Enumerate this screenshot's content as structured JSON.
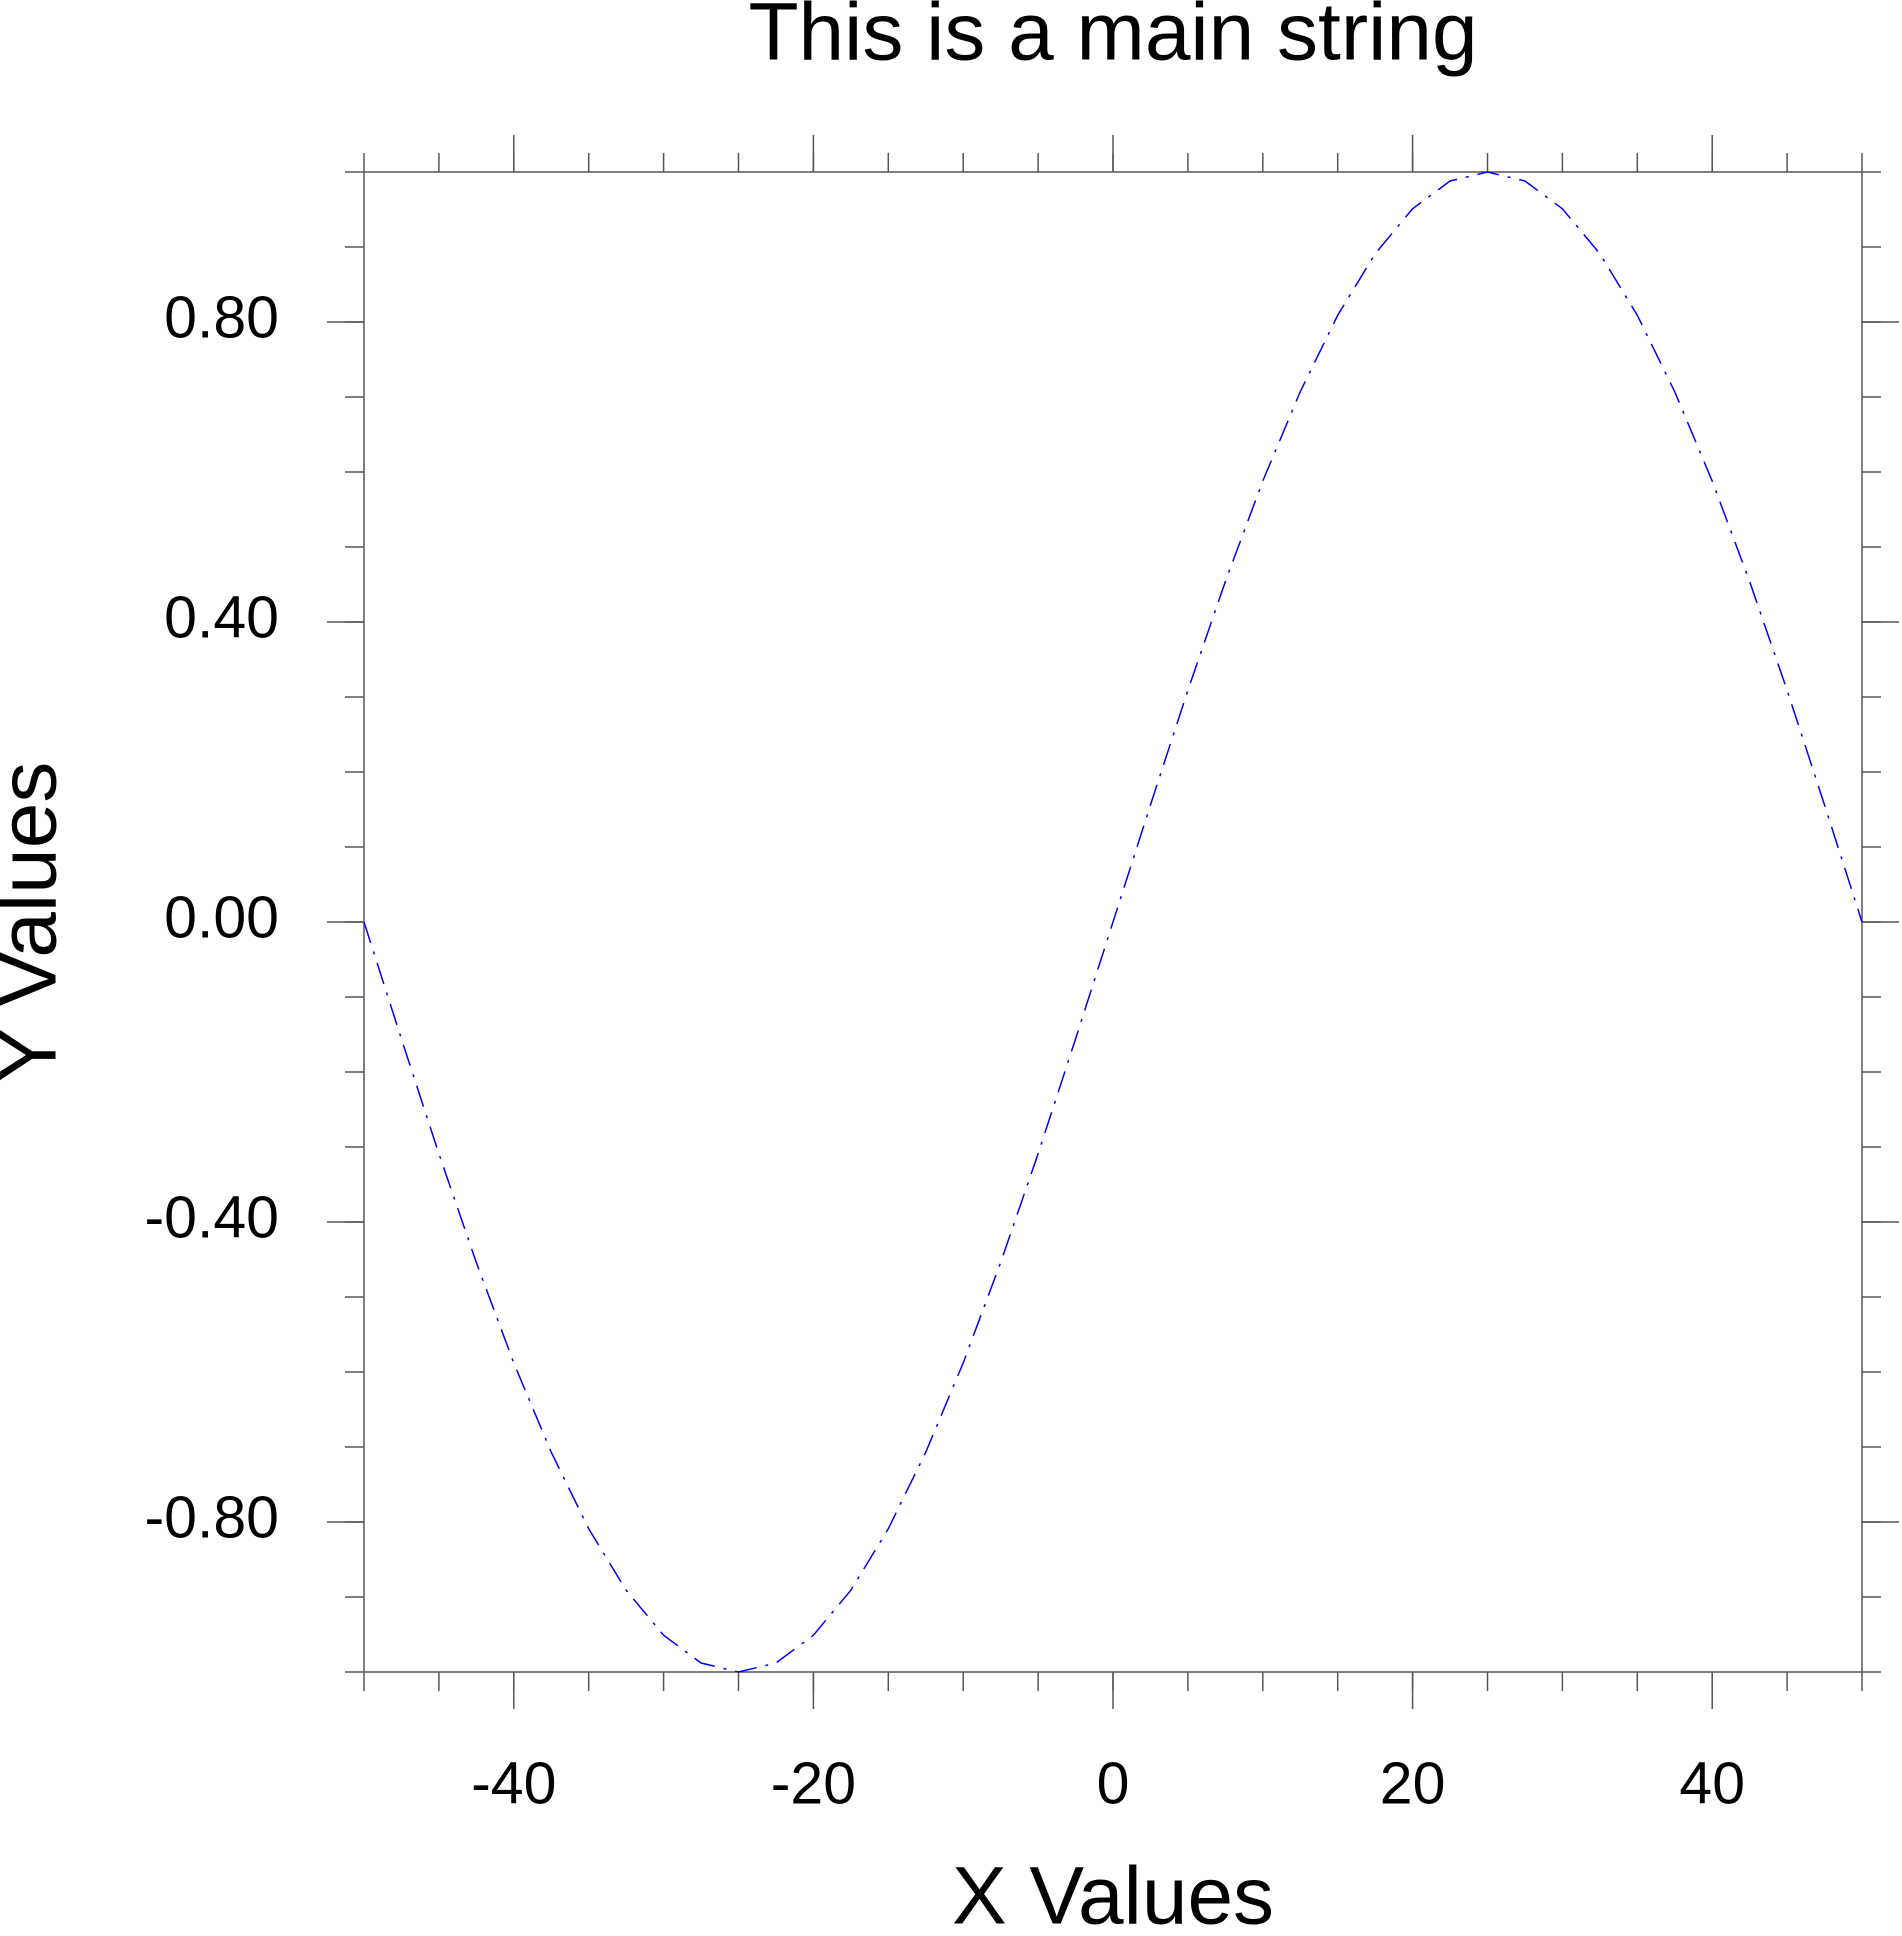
{
  "chart_data": {
    "type": "line",
    "title": "This is a main string",
    "x_label": "X Values",
    "y_label": "Y Values",
    "x": [
      -50,
      -47.5,
      -45,
      -42.5,
      -40,
      -37.5,
      -35,
      -32.5,
      -30,
      -27.5,
      -25,
      -22.5,
      -20,
      -17.5,
      -15,
      -12.5,
      -10,
      -7.5,
      -5,
      -2.5,
      0,
      2.5,
      5,
      7.5,
      10,
      12.5,
      15,
      17.5,
      20,
      22.5,
      25,
      27.5,
      30,
      32.5,
      35,
      37.5,
      40,
      42.5,
      45,
      47.5,
      50
    ],
    "series": [
      {
        "color": "#0000ff",
        "values": [
          0,
          -0.156,
          -0.309,
          -0.454,
          -0.588,
          -0.707,
          -0.809,
          -0.891,
          -0.951,
          -0.988,
          -1,
          -0.988,
          -0.951,
          -0.891,
          -0.809,
          -0.707,
          -0.588,
          -0.454,
          -0.309,
          -0.156,
          0,
          0.156,
          0.309,
          0.454,
          0.588,
          0.707,
          0.809,
          0.891,
          0.951,
          0.988,
          1,
          0.988,
          0.951,
          0.891,
          0.809,
          0.707,
          0.588,
          0.454,
          0.309,
          0.156,
          0
        ]
      }
    ],
    "xlim": [
      -50,
      50
    ],
    "xticks": [
      -40,
      -20,
      0,
      20,
      40
    ],
    "ylim": [
      -1,
      1
    ],
    "yticks": [
      {
        "value": -0.8,
        "label": "-0.80"
      },
      {
        "value": -0.4,
        "label": "-0.40"
      },
      {
        "value": 0,
        "label": "0.00"
      },
      {
        "value": 0.4,
        "label": "0.40"
      },
      {
        "value": 0.8,
        "label": "0.80"
      }
    ],
    "line_style": "dash-dot"
  }
}
